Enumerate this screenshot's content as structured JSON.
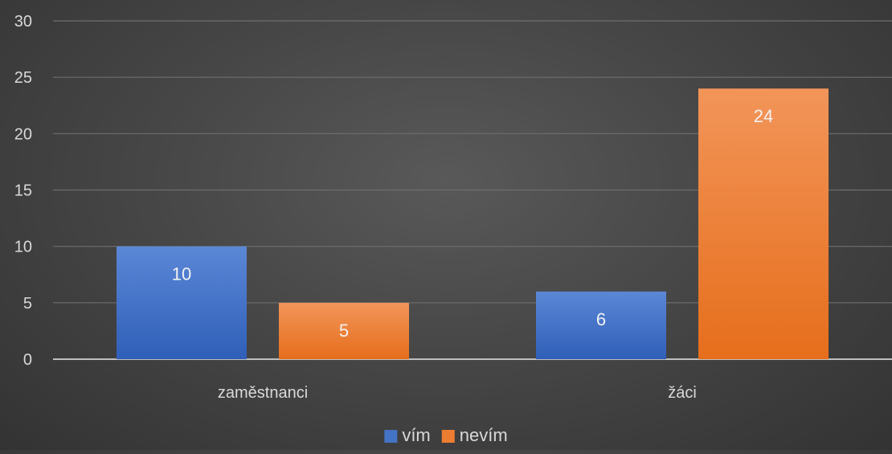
{
  "chart_data": {
    "type": "bar",
    "categories": [
      "zaměstnanci",
      "žáci"
    ],
    "series": [
      {
        "name": "vím",
        "values": [
          10,
          6
        ],
        "color": "#4472c4"
      },
      {
        "name": "nevím",
        "values": [
          5,
          24
        ],
        "color": "#ed7d31"
      }
    ],
    "ylim": [
      0,
      30
    ],
    "yticks": [
      0,
      5,
      10,
      15,
      20,
      25,
      30
    ],
    "grid": true,
    "data_labels": true,
    "legend_position": "bottom",
    "title": "",
    "xlabel": "",
    "ylabel": ""
  }
}
